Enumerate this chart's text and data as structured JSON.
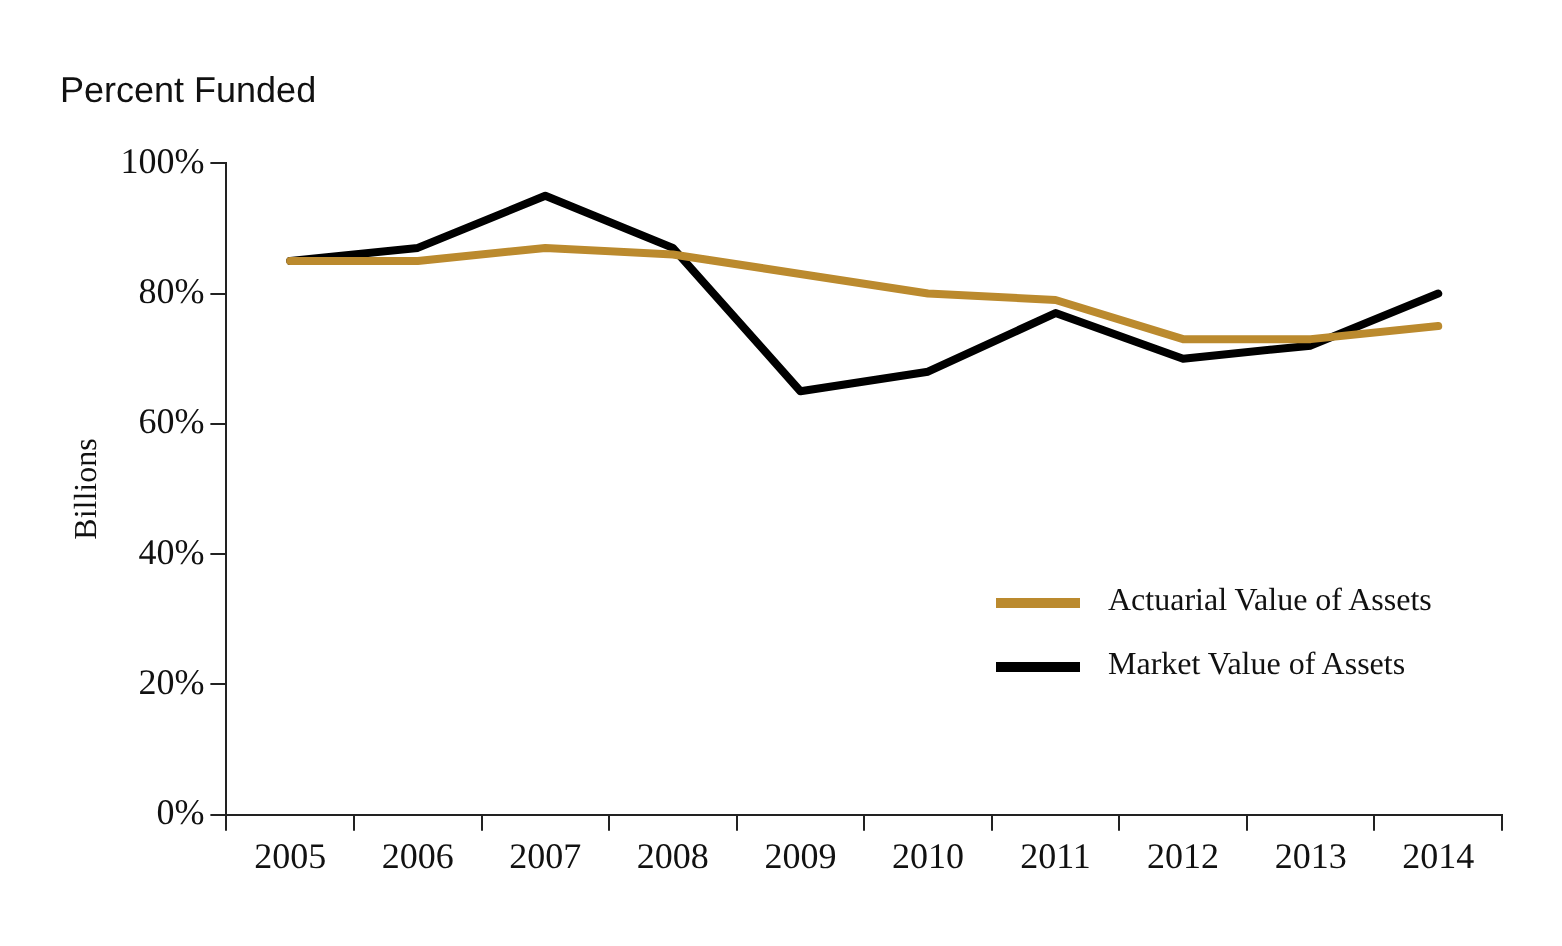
{
  "chart_data": {
    "type": "line",
    "title": "Percent Funded",
    "ylabel": "Billions",
    "categories": [
      "2005",
      "2006",
      "2007",
      "2008",
      "2009",
      "2010",
      "2011",
      "2012",
      "2013",
      "2014"
    ],
    "series": [
      {
        "name": "Actuarial Value of Assets",
        "color": "#bb8a2e",
        "values": [
          85,
          85,
          87,
          86,
          83,
          80,
          79,
          73,
          73,
          75
        ]
      },
      {
        "name": "Market Value of Assets",
        "color": "#000000",
        "values": [
          85,
          87,
          95,
          87,
          65,
          68,
          77,
          70,
          72,
          80
        ]
      }
    ],
    "ylim": [
      0,
      100
    ],
    "yticks": [
      {
        "value": 0,
        "label": "0%"
      },
      {
        "value": 20,
        "label": "20%"
      },
      {
        "value": 40,
        "label": "40%"
      },
      {
        "value": 60,
        "label": "60%"
      },
      {
        "value": 80,
        "label": "80%"
      },
      {
        "value": 100,
        "label": "100%"
      }
    ],
    "grid": false,
    "legend": "right",
    "marker": "none",
    "line_style": "solid"
  }
}
